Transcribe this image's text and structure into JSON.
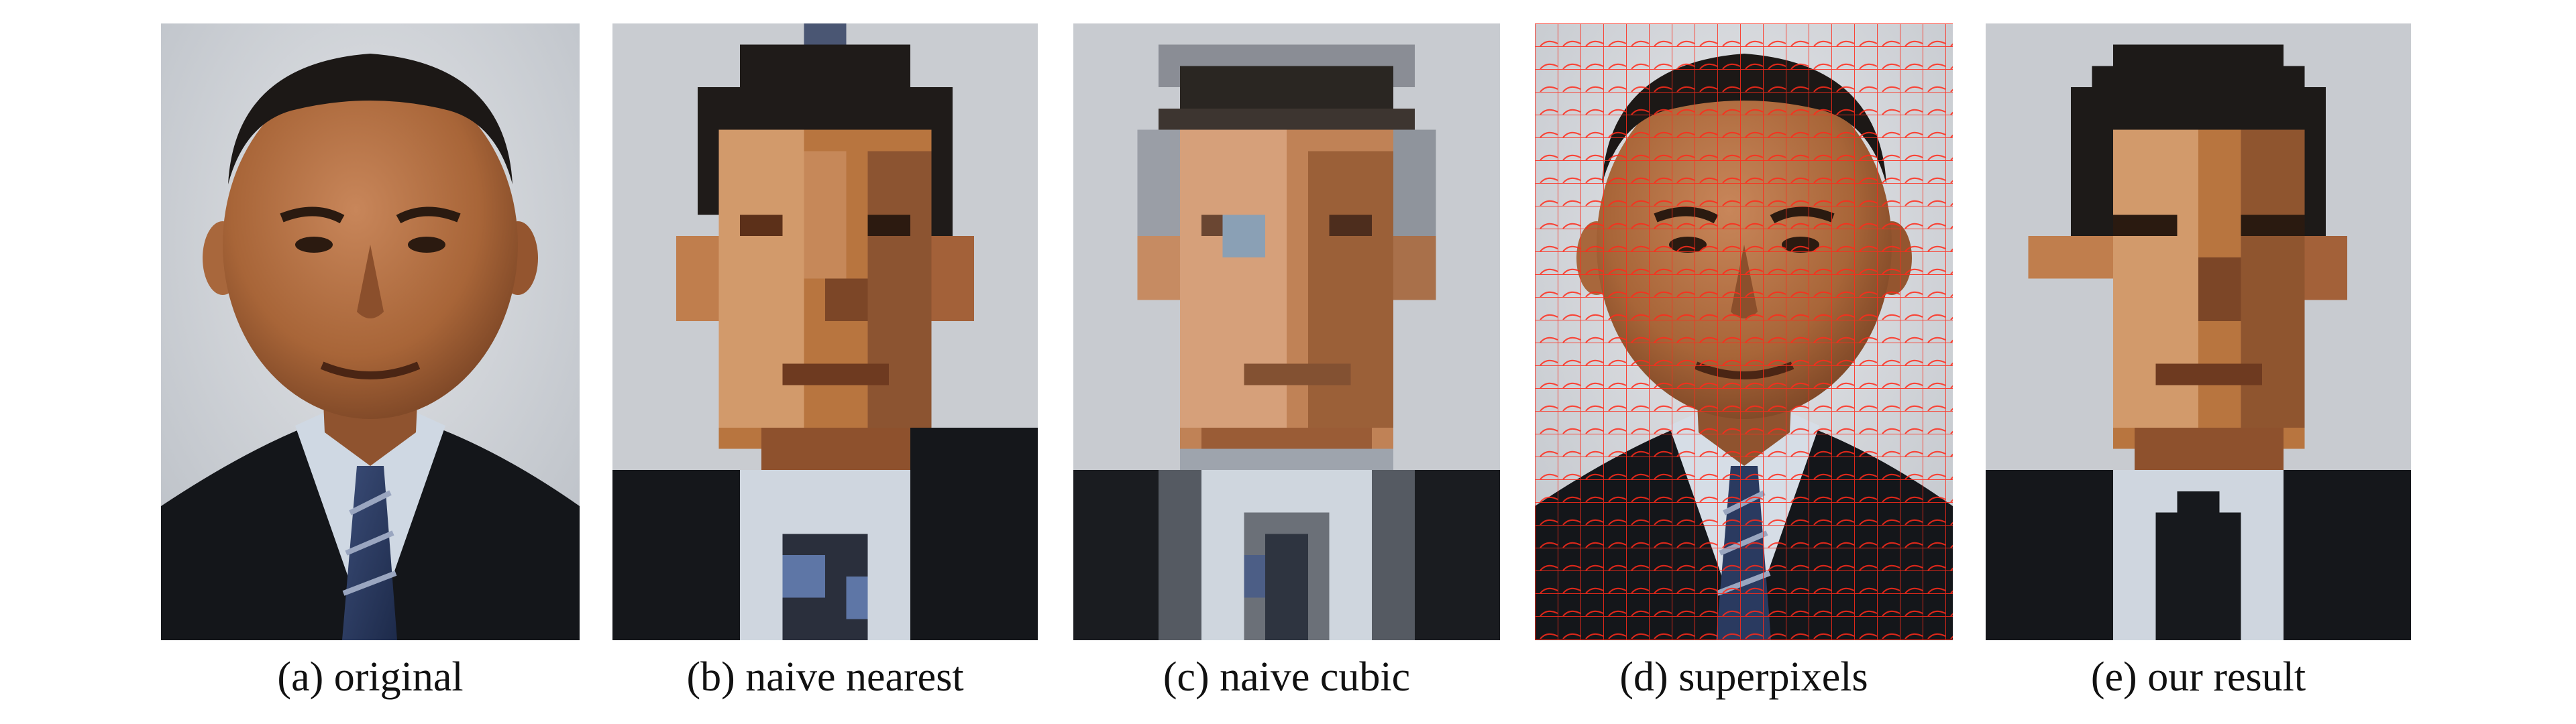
{
  "figure": {
    "panels": [
      {
        "id": "a",
        "caption": "(a) original",
        "style": "photo"
      },
      {
        "id": "b",
        "caption": "(b) naive nearest",
        "style": "pixel-nearest"
      },
      {
        "id": "c",
        "caption": "(c) naive cubic",
        "style": "pixel-cubic"
      },
      {
        "id": "d",
        "caption": "(d) superpixels",
        "style": "superpixel-overlay"
      },
      {
        "id": "e",
        "caption": "(e) our result",
        "style": "pixel-result"
      }
    ]
  },
  "colors": {
    "background_gray": "#c9ccd1",
    "background_light": "#d6d9dd",
    "skin_light": "#d79a6c",
    "skin_mid": "#b97444",
    "skin_dark": "#8f542f",
    "skin_shadow": "#6f3f22",
    "hair": "#1e1a17",
    "suit": "#17191d",
    "shirt": "#cfd6df",
    "tie": "#3c4d73",
    "superpixel_lines": "#ff2a1a"
  }
}
